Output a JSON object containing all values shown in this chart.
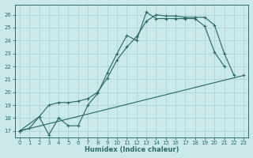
{
  "xlabel": "Humidex (Indice chaleur)",
  "xlim": [
    -0.5,
    23.5
  ],
  "ylim": [
    16.5,
    26.8
  ],
  "xticks": [
    0,
    1,
    2,
    3,
    4,
    5,
    6,
    7,
    8,
    9,
    10,
    11,
    12,
    13,
    14,
    15,
    16,
    17,
    18,
    19,
    20,
    21,
    22,
    23
  ],
  "yticks": [
    17,
    18,
    19,
    20,
    21,
    22,
    23,
    24,
    25,
    26
  ],
  "bg_color": "#cce9e9",
  "grid_color": "#aacece",
  "line_color": "#2a6e64",
  "line1_x": [
    0,
    1,
    2,
    3,
    4,
    5,
    6,
    7,
    8,
    9,
    10,
    11,
    12,
    13,
    14,
    15,
    16,
    17,
    18,
    19,
    20,
    21
  ],
  "line1_y": [
    17.0,
    17.2,
    18.1,
    16.7,
    18.0,
    17.4,
    17.4,
    19.0,
    19.9,
    21.5,
    23.0,
    24.4,
    24.0,
    26.2,
    25.7,
    25.7,
    25.7,
    25.7,
    25.7,
    25.1,
    23.1,
    22.0
  ],
  "line2_x": [
    0,
    2,
    3,
    4,
    5,
    6,
    7,
    8,
    9,
    10,
    11,
    12,
    13,
    14,
    15,
    16,
    17,
    18,
    19,
    20,
    21,
    22
  ],
  "line2_y": [
    17.0,
    18.1,
    19.0,
    19.2,
    19.2,
    19.3,
    19.5,
    20.0,
    21.1,
    22.5,
    23.5,
    24.3,
    25.5,
    26.0,
    25.9,
    25.9,
    25.8,
    25.8,
    25.8,
    25.2,
    23.0,
    21.3
  ],
  "line3_x": [
    0,
    23
  ],
  "line3_y": [
    17.0,
    21.3
  ],
  "markersize": 2.2,
  "linewidth": 0.85
}
